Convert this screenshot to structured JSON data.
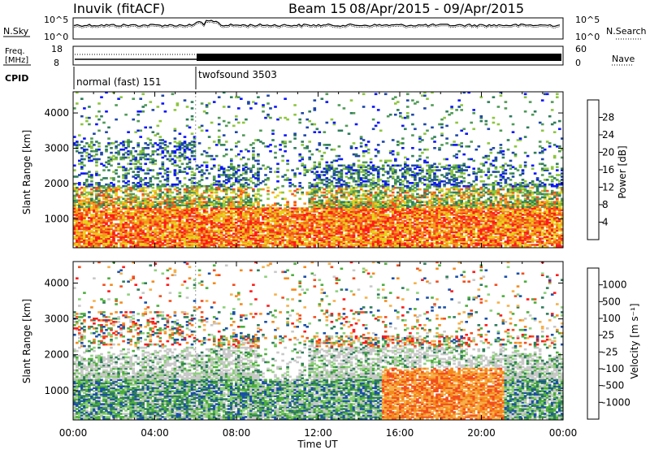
{
  "header": {
    "station": "Inuvik (fitACF)",
    "beam": "Beam 15",
    "date_range": "08/Apr/2015 - 09/Apr/2015"
  },
  "noise_panel": {
    "left_label": "N.Sky",
    "right_label": "N.Search",
    "left_ticks": [
      "10^5",
      "10^0"
    ],
    "right_ticks": [
      "10^5",
      "10^0"
    ]
  },
  "freq_panel": {
    "left_label_1": "Freq.",
    "left_label_2": "[MHz]",
    "right_label": "Nave",
    "left_ticks": [
      "18",
      "8"
    ],
    "right_ticks": [
      "60",
      "0"
    ]
  },
  "cpid_panel": {
    "label": "CPID",
    "modes": [
      {
        "name": "normal (fast) 151",
        "start": "00:00",
        "end": "06:00"
      },
      {
        "name": "twofsound 3503",
        "start": "06:00",
        "end": "24:00"
      }
    ]
  },
  "x_axis": {
    "label": "Time UT",
    "ticks": [
      "00:00",
      "04:00",
      "08:00",
      "12:00",
      "16:00",
      "20:00",
      "00:00"
    ]
  },
  "colors": {
    "power": [
      "#0a14ff",
      "#1e46a8",
      "#2e7d5a",
      "#4f9a56",
      "#8cc63e",
      "#e6d21e",
      "#f59a1c",
      "#f4511e",
      "#ff1a1a"
    ],
    "velocity": [
      "#ff1a1a",
      "#f24e1e",
      "#f58a1c",
      "#f5b04a",
      "#c8c8c8",
      "#8cd07a",
      "#4cae3c",
      "#2e7d5a",
      "#1a50a8"
    ]
  },
  "chart_data": [
    {
      "type": "heatmap",
      "panel": "power",
      "ylabel": "Slant Range [km]",
      "yticks": [
        "1000",
        "2000",
        "3000",
        "4000"
      ],
      "ylim": [
        180,
        4600
      ],
      "xlim_hours": [
        0,
        24
      ],
      "colorbar_label": "Power [dB]",
      "colorbar_ticks": [
        "4",
        "8",
        "12",
        "16",
        "20",
        "24",
        "28"
      ],
      "colorbar_range": [
        0,
        30
      ]
    },
    {
      "type": "heatmap",
      "panel": "velocity",
      "ylabel": "Slant Range [km]",
      "yticks": [
        "1000",
        "2000",
        "3000",
        "4000"
      ],
      "ylim": [
        180,
        4600
      ],
      "xlim_hours": [
        0,
        24
      ],
      "colorbar_label": "Velocity [m s⁻¹]",
      "colorbar_ticks": [
        "1000",
        "500",
        "100",
        "25",
        "-25",
        "-100",
        "-500",
        "-1000"
      ]
    }
  ]
}
